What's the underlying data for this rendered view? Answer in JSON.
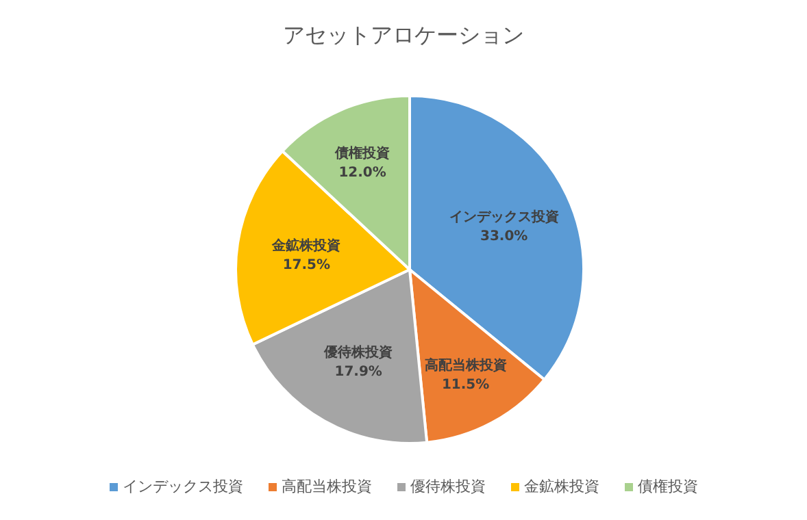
{
  "chart_data": {
    "type": "pie",
    "title": "アセットアロケーション",
    "categories": [
      "インデックス投資",
      "高配当株投資",
      "優待株投資",
      "金鉱株投資",
      "債権投資"
    ],
    "values": [
      33.0,
      11.5,
      17.9,
      17.5,
      12.0
    ],
    "value_labels": [
      "33.0%",
      "11.5%",
      "17.9%",
      "17.5%",
      "12.0%"
    ],
    "colors": [
      "#5b9bd5",
      "#ed7d31",
      "#a5a5a5",
      "#ffc000",
      "#a9d18e"
    ],
    "legend": "bottom"
  }
}
